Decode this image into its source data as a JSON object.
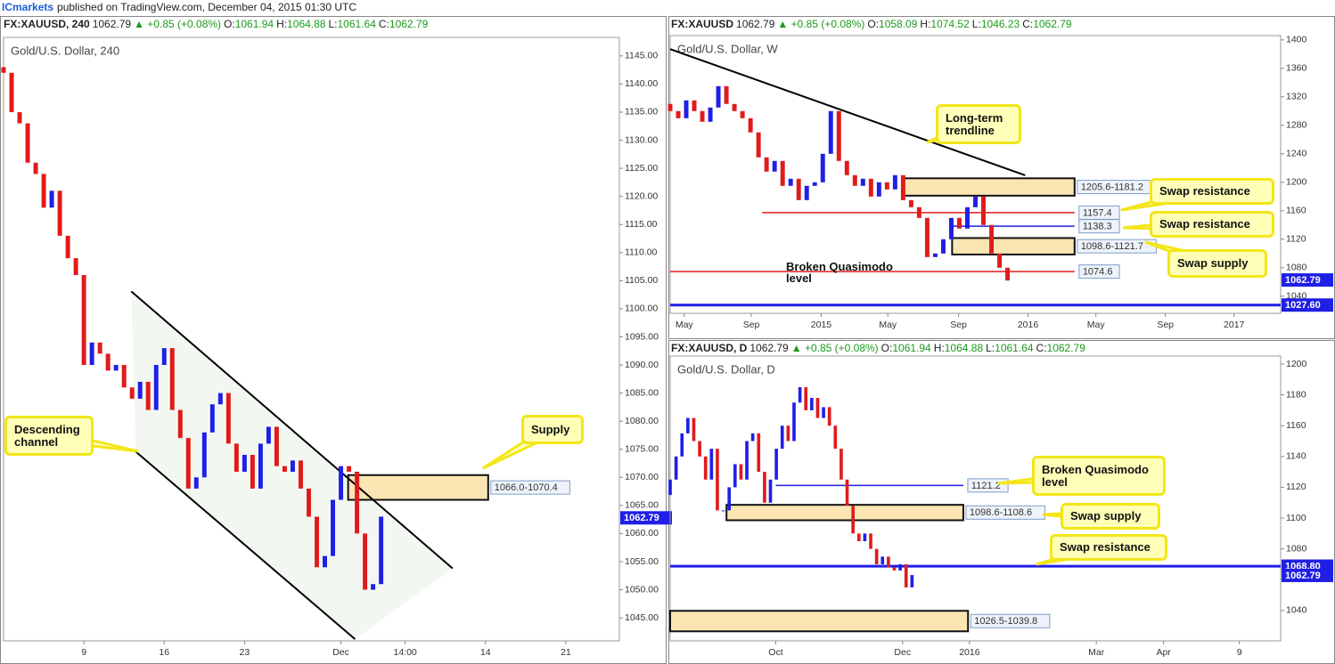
{
  "page_header": {
    "author": "ICmarkets",
    "text": "published on TradingView.com, December 04, 2015 01:30 UTC"
  },
  "chart_data": [
    {
      "type": "candlestick",
      "title": "Gold/U.S. Dollar, 240",
      "header": {
        "symbol": "FX:XAUUSD, 240",
        "price": "1062.79",
        "change": "▲ +0.85 (+0.08%)",
        "ohlc": [
          [
            "O:",
            "1061.94"
          ],
          [
            "H:",
            "1064.88"
          ],
          [
            "L:",
            "1061.64"
          ],
          [
            "C:",
            "1062.79"
          ]
        ]
      },
      "xlim": [
        0,
        230
      ],
      "xticks": [
        {
          "value": 30,
          "label": "9"
        },
        {
          "value": 60,
          "label": "16"
        },
        {
          "value": 90,
          "label": "23"
        },
        {
          "value": 126,
          "label": "Dec"
        },
        {
          "value": 150,
          "label": "14:00"
        },
        {
          "value": 180,
          "label": "14"
        },
        {
          "value": 210,
          "label": "21"
        }
      ],
      "ylim": [
        1040.9,
        1148.3
      ],
      "yticks": [
        {
          "value": 1045,
          "label": "1045.00"
        },
        {
          "value": 1050,
          "label": "1050.00"
        },
        {
          "value": 1055,
          "label": "1055.00"
        },
        {
          "value": 1060,
          "label": "1060.00"
        },
        {
          "value": 1065,
          "label": "1065.00"
        },
        {
          "value": 1070,
          "label": "1070.00"
        },
        {
          "value": 1075,
          "label": "1075.00"
        },
        {
          "value": 1080,
          "label": "1080.00"
        },
        {
          "value": 1085,
          "label": "1085.00"
        },
        {
          "value": 1090,
          "label": "1090.00"
        },
        {
          "value": 1095,
          "label": "1095.00"
        },
        {
          "value": 1100,
          "label": "1100.00"
        },
        {
          "value": 1105,
          "label": "1105.00"
        },
        {
          "value": 1110,
          "label": "1110.00"
        },
        {
          "value": 1115,
          "label": "1115.00"
        },
        {
          "value": 1120,
          "label": "1120.00"
        },
        {
          "value": 1125,
          "label": "1125.00"
        },
        {
          "value": 1130,
          "label": "1130.00"
        },
        {
          "value": 1135,
          "label": "1135.00"
        },
        {
          "value": 1140,
          "label": "1140.00"
        },
        {
          "value": 1145,
          "label": "1145.00"
        }
      ],
      "up_color": "#1f1fe6",
      "down_color": "#e01b1b",
      "x": [
        0,
        3,
        6,
        9,
        12,
        15,
        18,
        21,
        24,
        27,
        30,
        33,
        36,
        39,
        42,
        45,
        48,
        51,
        54,
        57,
        60,
        63,
        66,
        69,
        72,
        75,
        78,
        81,
        84,
        87,
        90,
        93,
        96,
        99,
        102,
        105,
        108,
        111,
        114,
        117,
        120,
        123,
        126,
        129,
        132,
        135,
        138,
        141
      ],
      "open": [
        1143,
        1142,
        1135,
        1133,
        1126,
        1124,
        1118,
        1121,
        1113,
        1109,
        1106,
        1090,
        1094,
        1092,
        1089,
        1090,
        1086,
        1084,
        1087,
        1082,
        1090,
        1093,
        1082,
        1077,
        1068,
        1070,
        1078,
        1083,
        1085,
        1076,
        1071,
        1074,
        1068,
        1076,
        1079,
        1072,
        1071,
        1073,
        1068,
        1063,
        1054,
        1056,
        1066,
        1072,
        1071,
        1060,
        1050,
        1051
      ],
      "close": [
        1142,
        1135,
        1133,
        1126,
        1124,
        1118,
        1121,
        1113,
        1109,
        1106,
        1090,
        1094,
        1092,
        1089,
        1090,
        1086,
        1084,
        1087,
        1082,
        1090,
        1093,
        1082,
        1077,
        1068,
        1070,
        1078,
        1083,
        1085,
        1076,
        1071,
        1074,
        1068,
        1076,
        1079,
        1072,
        1071,
        1073,
        1068,
        1063,
        1054,
        1056,
        1066,
        1072,
        1071,
        1060,
        1050,
        1051,
        1063
      ],
      "channel_fill": "#f2f8f1",
      "trendlines": [
        {
          "x": [
            47.7,
            167.7
          ],
          "y": [
            1103.1,
            1053.8
          ],
          "color": "#000000"
        },
        {
          "x": [
            49.3,
            131.3
          ],
          "y": [
            1074.6,
            1041.2
          ],
          "color": "#000000"
        }
      ],
      "zones": [
        {
          "low": 1066.0,
          "high": 1070.4,
          "x": [
            128.7,
            181
          ],
          "label": "1066.0-1070.4"
        }
      ],
      "levels": [],
      "price_tags": [
        {
          "value": 1062.79,
          "color": "#1f1fe6"
        }
      ],
      "annotations": [
        {
          "text": "Descending channel",
          "style": "callout"
        },
        {
          "text": "Supply",
          "style": "callout"
        }
      ]
    },
    {
      "type": "candlestick",
      "title": "Gold/U.S. Dollar, W",
      "header": {
        "symbol": "FX:XAUUSD",
        "price": "1062.79",
        "change": "▲ +0.85 (+0.08%)",
        "ohlc": [
          [
            "O:",
            "1058.09"
          ],
          [
            "H:",
            "1074.52"
          ],
          [
            "L:",
            "1046.23"
          ],
          [
            "C:",
            "1062.79"
          ]
        ]
      },
      "xlim": [
        0,
        152
      ],
      "xticks": [
        {
          "value": 3.5,
          "label": "May"
        },
        {
          "value": 20.2,
          "label": "Sep"
        },
        {
          "value": 37.6,
          "label": "2015"
        },
        {
          "value": 54.2,
          "label": "May"
        },
        {
          "value": 71.8,
          "label": "Sep"
        },
        {
          "value": 89.1,
          "label": "2016"
        },
        {
          "value": 106,
          "label": "May"
        },
        {
          "value": 123.3,
          "label": "Sep"
        },
        {
          "value": 140.4,
          "label": "2017"
        }
      ],
      "ylim": [
        1016,
        1406
      ],
      "yticks": [
        1040,
        1080,
        1120,
        1160,
        1200,
        1240,
        1280,
        1320,
        1360,
        1400
      ],
      "up_color": "#1f1fe6",
      "down_color": "#e01b1b",
      "x": [
        0,
        2,
        4,
        6,
        8,
        10,
        12,
        14,
        16,
        18,
        20,
        22,
        24,
        26,
        28,
        30,
        32,
        34,
        36,
        38,
        40,
        42,
        44,
        46,
        48,
        50,
        52,
        54,
        56,
        58,
        60,
        62,
        64,
        66,
        68,
        70,
        72,
        74,
        76,
        78,
        80,
        82,
        84
      ],
      "open": [
        1310,
        1300,
        1290,
        1315,
        1300,
        1285,
        1305,
        1335,
        1310,
        1300,
        1290,
        1270,
        1235,
        1215,
        1230,
        1195,
        1205,
        1175,
        1195,
        1200,
        1240,
        1300,
        1230,
        1210,
        1195,
        1205,
        1180,
        1200,
        1190,
        1210,
        1175,
        1165,
        1150,
        1095,
        1100,
        1120,
        1150,
        1135,
        1165,
        1180,
        1140,
        1100,
        1080
      ],
      "close": [
        1300,
        1290,
        1315,
        1300,
        1285,
        1305,
        1335,
        1310,
        1300,
        1290,
        1270,
        1235,
        1215,
        1230,
        1195,
        1205,
        1175,
        1195,
        1200,
        1240,
        1300,
        1230,
        1210,
        1195,
        1205,
        1180,
        1200,
        1190,
        1210,
        1175,
        1165,
        1150,
        1095,
        1100,
        1120,
        1150,
        1135,
        1165,
        1180,
        1140,
        1100,
        1080,
        1062
      ],
      "trendlines": [
        {
          "x": [
            0,
            88.4
          ],
          "y": [
            1387,
            1209.8
          ],
          "color": "#000000"
        }
      ],
      "zones": [
        {
          "low": 1181.2,
          "high": 1205.6,
          "x": [
            57.8,
            100.7
          ],
          "label": "1205.6-1181.2"
        },
        {
          "low": 1098.6,
          "high": 1121.7,
          "x": [
            70.2,
            100.7
          ],
          "label": "1098.6-1121.7"
        }
      ],
      "levels": [
        {
          "value": 1157.4,
          "x": [
            22.9,
            100.7
          ],
          "color": "#e01b1b"
        },
        {
          "value": 1138.3,
          "x": [
            69.6,
            100.7
          ],
          "color": "#1f1fe6"
        },
        {
          "value": 1074.6,
          "x": [
            0,
            100.7
          ],
          "color": "#e01b1b"
        },
        {
          "value": 1027.6,
          "x": [
            0,
            152
          ],
          "color": "#1f1fe6",
          "width": 3
        }
      ],
      "price_tags": [
        {
          "value": 1062.79,
          "color": "#1f1fe6"
        },
        {
          "value": 1027.6,
          "label": "1027.60",
          "color": "#1f1fe6"
        }
      ],
      "annotations": [
        {
          "text": "Long-term trendline",
          "style": "callout"
        },
        {
          "text": "Swap resistance",
          "style": "callout"
        },
        {
          "text": "Swap resistance",
          "style": "callout"
        },
        {
          "text": "Swap supply",
          "style": "callout"
        },
        {
          "text": "Broken Quasimodo level",
          "style": "plain"
        }
      ]
    },
    {
      "type": "candlestick",
      "title": "Gold/U.S. Dollar, D",
      "header": {
        "symbol": "FX:XAUUSD, D",
        "price": "1062.79",
        "change": "▲ +0.85 (+0.08%)",
        "ohlc": [
          [
            "O:",
            "1061.94"
          ],
          [
            "H:",
            "1064.88"
          ],
          [
            "L:",
            "1061.64"
          ],
          [
            "C:",
            "1062.79"
          ]
        ]
      },
      "xlim": [
        0,
        207
      ],
      "xticks": [
        {
          "value": 35.8,
          "label": "Oct"
        },
        {
          "value": 78.8,
          "label": "Dec"
        },
        {
          "value": 101.5,
          "label": "2016"
        },
        {
          "value": 144.5,
          "label": "Mar"
        },
        {
          "value": 167.3,
          "label": "Apr"
        },
        {
          "value": 193,
          "label": "9"
        }
      ],
      "ylim": [
        1020.3,
        1205.2
      ],
      "yticks": [
        1040,
        1060,
        1080,
        1100,
        1120,
        1140,
        1160,
        1180,
        1200
      ],
      "up_color": "#1f1fe6",
      "down_color": "#e01b1b",
      "x": [
        0,
        2,
        4,
        6,
        8,
        10,
        12,
        14,
        16,
        18,
        20,
        22,
        24,
        26,
        28,
        30,
        32,
        34,
        36,
        38,
        40,
        42,
        44,
        46,
        48,
        50,
        52,
        54,
        56,
        58,
        60,
        62,
        64,
        66,
        68,
        70,
        72,
        74,
        76,
        78,
        80,
        82
      ],
      "open": [
        1115,
        1125,
        1140,
        1155,
        1165,
        1150,
        1140,
        1125,
        1145,
        1105,
        1105,
        1120,
        1135,
        1125,
        1150,
        1155,
        1130,
        1110,
        1125,
        1145,
        1160,
        1150,
        1175,
        1185,
        1170,
        1178,
        1165,
        1172,
        1160,
        1145,
        1125,
        1108,
        1090,
        1085,
        1090,
        1080,
        1070,
        1075,
        1068,
        1066,
        1070,
        1055
      ],
      "close": [
        1125,
        1140,
        1155,
        1165,
        1150,
        1140,
        1125,
        1145,
        1105,
        1105,
        1120,
        1135,
        1125,
        1150,
        1155,
        1130,
        1110,
        1125,
        1145,
        1160,
        1150,
        1175,
        1185,
        1170,
        1178,
        1165,
        1172,
        1160,
        1145,
        1125,
        1108,
        1090,
        1085,
        1090,
        1080,
        1070,
        1075,
        1068,
        1066,
        1070,
        1055,
        1063
      ],
      "trendlines": [],
      "zones": [
        {
          "low": 1098.6,
          "high": 1108.6,
          "x": [
            19.1,
            99.4
          ],
          "label": "1098.6-1108.6"
        },
        {
          "low": 1026.5,
          "high": 1039.8,
          "x": [
            0,
            101
          ],
          "label": "1026.5-1039.8"
        }
      ],
      "levels": [
        {
          "value": 1121.2,
          "x": [
            35.8,
            99.4
          ],
          "color": "#1f1fe6"
        },
        {
          "value": 1068.8,
          "x": [
            0,
            207
          ],
          "color": "#1f1fe6",
          "width": 3,
          "no_tag": true
        }
      ],
      "price_tags": [
        {
          "value": 1068.8,
          "label": "1068.80",
          "color": "#1f1fe6"
        },
        {
          "value": 1062.79,
          "color": "#1f1fe6"
        }
      ],
      "annotations": [
        {
          "text": "Broken Quasimodo level",
          "style": "callout"
        },
        {
          "text": "Swap supply",
          "style": "callout"
        },
        {
          "text": "Swap resistance",
          "style": "callout"
        }
      ]
    }
  ]
}
